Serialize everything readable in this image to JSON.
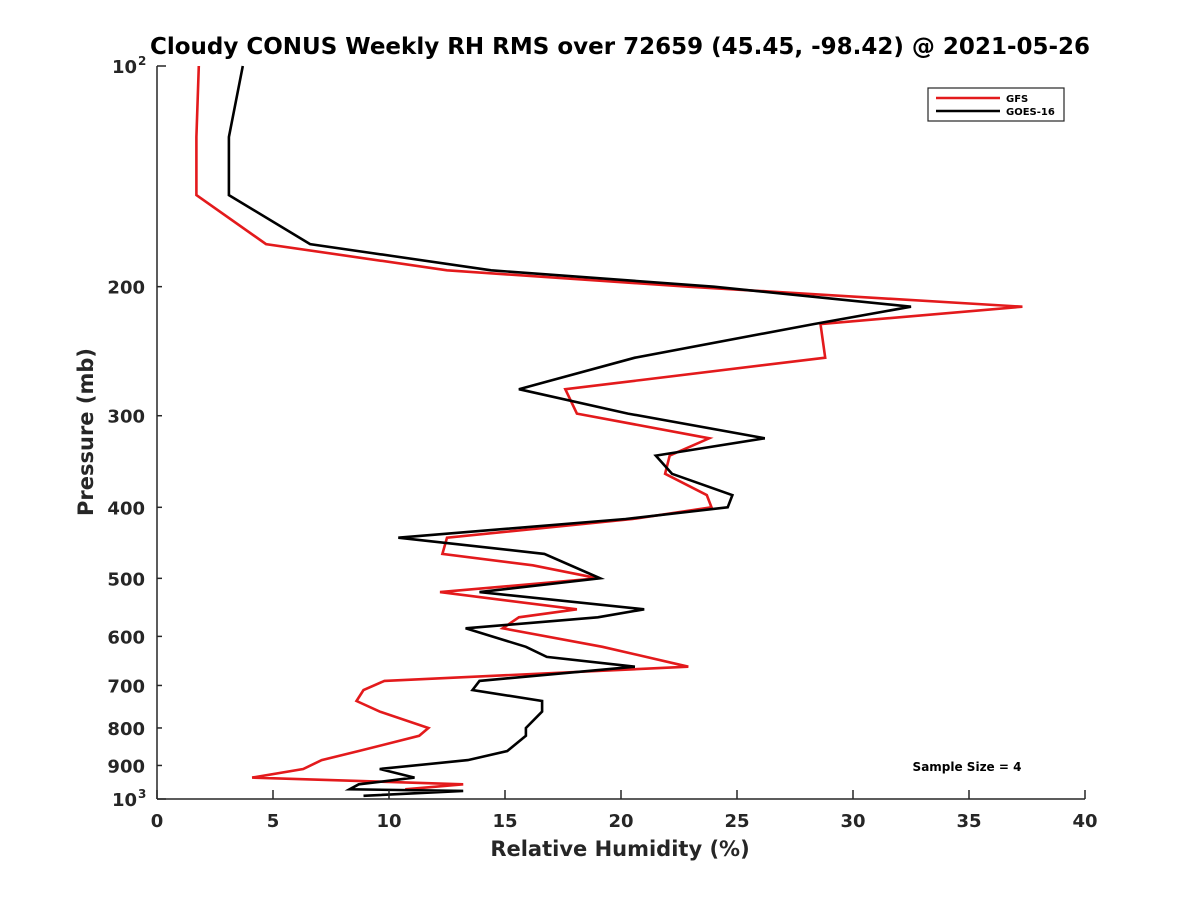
{
  "chart_data": {
    "type": "line",
    "title": "Cloudy CONUS Weekly RH RMS over 72659 (45.45, -98.42) @ 2021-05-26",
    "xlabel": "Relative Humidity (%)",
    "ylabel": "Pressure (mb)",
    "xlim": [
      0,
      40
    ],
    "ylim": [
      100,
      1000
    ],
    "y_scale": "log",
    "y_reversed": true,
    "grid": false,
    "legend_position": "top-right",
    "x_ticks": [
      0,
      5,
      10,
      15,
      20,
      25,
      30,
      35,
      40
    ],
    "x_tick_labels": [
      "0",
      "5",
      "10",
      "15",
      "20",
      "25",
      "30",
      "35",
      "40"
    ],
    "y_ticks": [
      {
        "value": 100,
        "label": "10",
        "exponent": "2"
      },
      {
        "value": 200,
        "label": "200",
        "exponent": ""
      },
      {
        "value": 300,
        "label": "300",
        "exponent": ""
      },
      {
        "value": 400,
        "label": "400",
        "exponent": ""
      },
      {
        "value": 500,
        "label": "500",
        "exponent": ""
      },
      {
        "value": 600,
        "label": "600",
        "exponent": ""
      },
      {
        "value": 700,
        "label": "700",
        "exponent": ""
      },
      {
        "value": 800,
        "label": "800",
        "exponent": ""
      },
      {
        "value": 900,
        "label": "900",
        "exponent": ""
      },
      {
        "value": 1000,
        "label": "10",
        "exponent": "3"
      }
    ],
    "series": [
      {
        "name": "GFS",
        "color": "#e31a1c",
        "points": [
          [
            1.8,
            100
          ],
          [
            1.7,
            125
          ],
          [
            1.7,
            150
          ],
          [
            4.7,
            175
          ],
          [
            12.5,
            190
          ],
          [
            22.9,
            200
          ],
          [
            37.3,
            213
          ],
          [
            28.6,
            225
          ],
          [
            28.8,
            250
          ],
          [
            17.6,
            276
          ],
          [
            18.1,
            298
          ],
          [
            23.8,
            322
          ],
          [
            22.1,
            340
          ],
          [
            21.9,
            360
          ],
          [
            23.7,
            385
          ],
          [
            23.9,
            400
          ],
          [
            20.5,
            415
          ],
          [
            12.5,
            440
          ],
          [
            12.3,
            463
          ],
          [
            16.2,
            480
          ],
          [
            19.0,
            500
          ],
          [
            12.2,
            522
          ],
          [
            18.1,
            551
          ],
          [
            15.6,
            565
          ],
          [
            14.9,
            585
          ],
          [
            19.2,
            620
          ],
          [
            22.9,
            660
          ],
          [
            9.8,
            690
          ],
          [
            8.9,
            710
          ],
          [
            8.6,
            735
          ],
          [
            9.6,
            760
          ],
          [
            11.7,
            800
          ],
          [
            11.3,
            820
          ],
          [
            8.7,
            860
          ],
          [
            7.1,
            885
          ],
          [
            6.3,
            910
          ],
          [
            4.1,
            935
          ],
          [
            13.2,
            955
          ],
          [
            10.7,
            970
          ]
        ]
      },
      {
        "name": "GOES-16",
        "color": "#000000",
        "points": [
          [
            3.7,
            100
          ],
          [
            3.1,
            125
          ],
          [
            3.1,
            150
          ],
          [
            6.6,
            175
          ],
          [
            14.4,
            190
          ],
          [
            24.0,
            200
          ],
          [
            32.5,
            213
          ],
          [
            28.3,
            225
          ],
          [
            20.6,
            250
          ],
          [
            15.6,
            276
          ],
          [
            20.3,
            298
          ],
          [
            26.2,
            322
          ],
          [
            21.5,
            340
          ],
          [
            22.2,
            360
          ],
          [
            24.8,
            385
          ],
          [
            24.6,
            400
          ],
          [
            20.2,
            415
          ],
          [
            10.4,
            440
          ],
          [
            16.7,
            463
          ],
          [
            19.1,
            500
          ],
          [
            13.9,
            522
          ],
          [
            21.0,
            551
          ],
          [
            19.0,
            565
          ],
          [
            13.3,
            585
          ],
          [
            15.9,
            620
          ],
          [
            16.8,
            640
          ],
          [
            20.6,
            660
          ],
          [
            13.9,
            690
          ],
          [
            13.6,
            710
          ],
          [
            16.6,
            735
          ],
          [
            16.6,
            760
          ],
          [
            15.9,
            800
          ],
          [
            15.9,
            820
          ],
          [
            15.1,
            860
          ],
          [
            13.4,
            885
          ],
          [
            9.6,
            910
          ],
          [
            11.1,
            935
          ],
          [
            8.7,
            955
          ],
          [
            8.3,
            970
          ],
          [
            13.2,
            975
          ],
          [
            8.9,
            990
          ]
        ]
      }
    ],
    "annotations": [
      "Sample Size = 4"
    ]
  }
}
